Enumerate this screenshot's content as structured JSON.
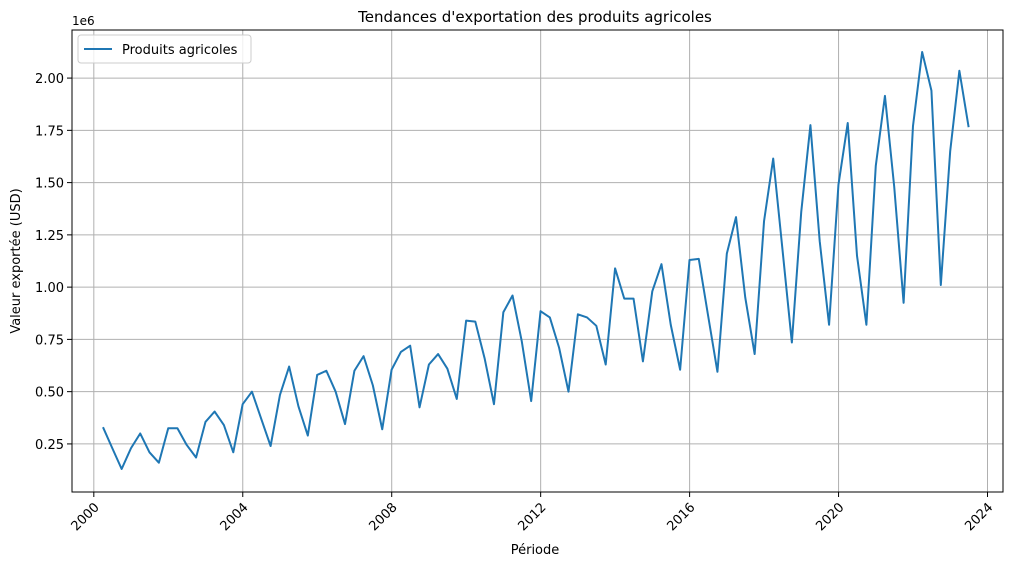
{
  "chart_data": {
    "type": "line",
    "title": "Tendances d'exportation des produits agricoles",
    "xlabel": "Période",
    "ylabel": "Valeur exportée (USD)",
    "y_offset_text": "1e6",
    "x_ticks": [
      "2000",
      "2004",
      "2008",
      "2012",
      "2016",
      "2020",
      "2024"
    ],
    "x_tick_years": [
      2000,
      2004,
      2008,
      2012,
      2016,
      2020,
      2024
    ],
    "y_ticks": [
      "0.25",
      "0.50",
      "0.75",
      "1.00",
      "1.25",
      "1.50",
      "1.75",
      "2.00"
    ],
    "y_tick_values": [
      250000,
      500000,
      750000,
      1000000,
      1250000,
      1500000,
      1750000,
      2000000
    ],
    "xlim": [
      "1999-06-01",
      "2024-06-01"
    ],
    "ylim": [
      20000,
      2230000
    ],
    "grid": true,
    "legend": {
      "position": "top-left"
    },
    "series": [
      {
        "name": "Produits agricoles",
        "color": "#1f77b4",
        "x": [
          "2000-03-31",
          "2000-06-30",
          "2000-09-30",
          "2000-12-31",
          "2001-03-31",
          "2001-06-30",
          "2001-09-30",
          "2001-12-31",
          "2002-03-31",
          "2002-06-30",
          "2002-09-30",
          "2002-12-31",
          "2003-03-31",
          "2003-06-30",
          "2003-09-30",
          "2003-12-31",
          "2004-03-31",
          "2004-06-30",
          "2004-09-30",
          "2004-12-31",
          "2005-03-31",
          "2005-06-30",
          "2005-09-30",
          "2005-12-31",
          "2006-03-31",
          "2006-06-30",
          "2006-09-30",
          "2006-12-31",
          "2007-03-31",
          "2007-06-30",
          "2007-09-30",
          "2007-12-31",
          "2008-03-31",
          "2008-06-30",
          "2008-09-30",
          "2008-12-31",
          "2009-03-31",
          "2009-06-30",
          "2009-09-30",
          "2009-12-31",
          "2010-03-31",
          "2010-06-30",
          "2010-09-30",
          "2010-12-31",
          "2011-03-31",
          "2011-06-30",
          "2011-09-30",
          "2011-12-31",
          "2012-03-31",
          "2012-06-30",
          "2012-09-30",
          "2012-12-31",
          "2013-03-31",
          "2013-06-30",
          "2013-09-30",
          "2013-12-31",
          "2014-03-31",
          "2014-06-30",
          "2014-09-30",
          "2014-12-31",
          "2015-03-31",
          "2015-06-30",
          "2015-09-30",
          "2015-12-31",
          "2016-03-31",
          "2016-06-30",
          "2016-09-30",
          "2016-12-31",
          "2017-03-31",
          "2017-06-30",
          "2017-09-30",
          "2017-12-31",
          "2018-03-31",
          "2018-06-30",
          "2018-09-30",
          "2018-12-31",
          "2019-03-31",
          "2019-06-30",
          "2019-09-30",
          "2019-12-31",
          "2020-03-31",
          "2020-06-30",
          "2020-09-30",
          "2020-12-31",
          "2021-03-31",
          "2021-06-30",
          "2021-09-30",
          "2021-12-31",
          "2022-03-31",
          "2022-06-30",
          "2022-09-30",
          "2022-12-31",
          "2023-03-31",
          "2023-06-30"
        ],
        "y": [
          330000,
          230000,
          130000,
          230000,
          300000,
          210000,
          160000,
          325000,
          325000,
          245000,
          185000,
          355000,
          405000,
          340000,
          210000,
          440000,
          500000,
          370000,
          240000,
          485000,
          620000,
          430000,
          290000,
          580000,
          600000,
          500000,
          345000,
          600000,
          670000,
          530000,
          320000,
          605000,
          690000,
          720000,
          425000,
          630000,
          680000,
          610000,
          465000,
          840000,
          835000,
          660000,
          440000,
          880000,
          960000,
          740000,
          455000,
          885000,
          855000,
          710000,
          500000,
          870000,
          855000,
          815000,
          630000,
          1090000,
          945000,
          945000,
          645000,
          980000,
          1110000,
          820000,
          605000,
          1130000,
          1135000,
          865000,
          595000,
          1160000,
          1335000,
          950000,
          680000,
          1315000,
          1615000,
          1180000,
          735000,
          1360000,
          1775000,
          1220000,
          820000,
          1490000,
          1785000,
          1150000,
          820000,
          1580000,
          1915000,
          1480000,
          925000,
          1770000,
          2125000,
          1940000,
          1010000,
          1650000,
          2035000,
          1765000
        ]
      }
    ]
  }
}
